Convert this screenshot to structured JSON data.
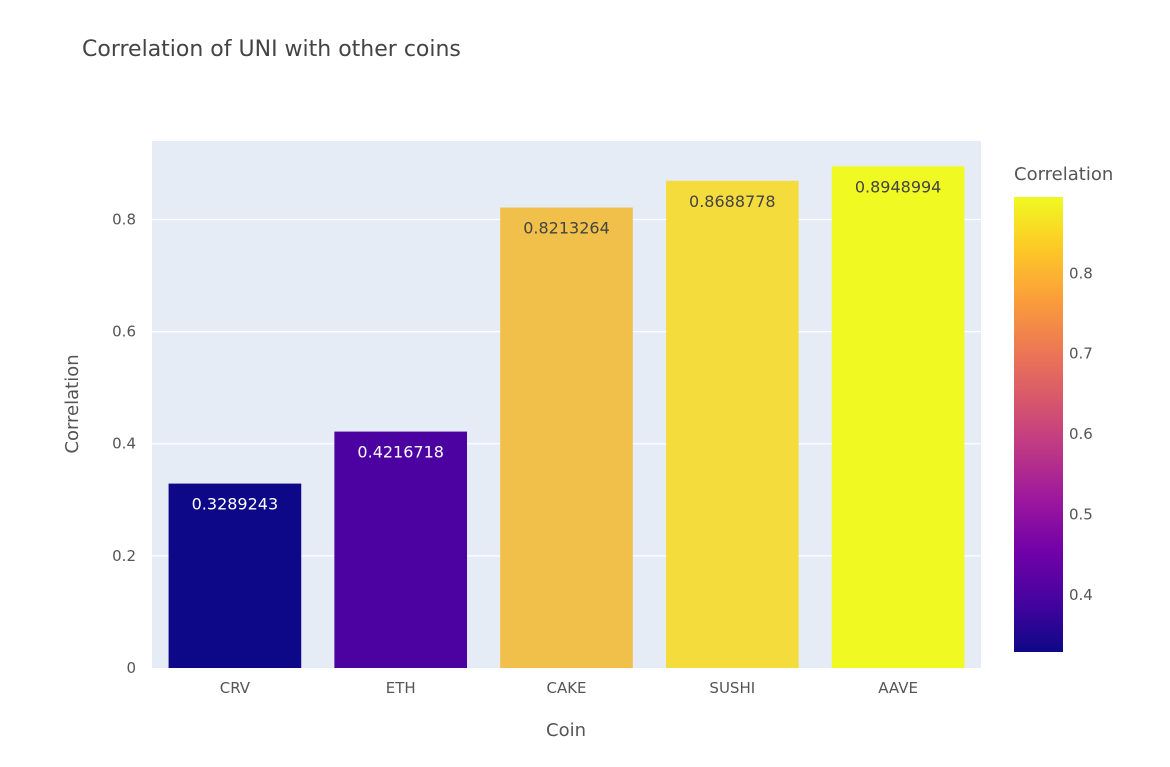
{
  "chart_data": {
    "type": "bar",
    "title": "Correlation of UNI with other coins",
    "xlabel": "Coin",
    "ylabel": "Correlation",
    "categories": [
      "CRV",
      "ETH",
      "CAKE",
      "SUSHI",
      "AAVE"
    ],
    "values": [
      0.3289243,
      0.4216718,
      0.8213264,
      0.8688778,
      0.8948994
    ],
    "data_labels": [
      "0.3289243",
      "0.4216718",
      "0.8213264",
      "0.8688778",
      "0.8948994"
    ],
    "bar_colors": [
      "#0d0887",
      "#4c02a1",
      "#f1c04a",
      "#f4dc3d",
      "#f0f921"
    ],
    "label_colors": [
      "#ffffff",
      "#ffffff",
      "#444444",
      "#444444",
      "#444444"
    ],
    "ylim": [
      0,
      0.94
    ],
    "yticks": [
      0,
      0.2,
      0.4,
      0.6,
      0.8
    ],
    "ytick_labels": [
      "0",
      "0.2",
      "0.4",
      "0.6",
      "0.8"
    ],
    "grid": true,
    "plot_background": "#e5ecf6",
    "colorbar": {
      "title": "Correlation",
      "range": [
        0.3289243,
        0.8948994
      ],
      "ticks": [
        0.4,
        0.5,
        0.6,
        0.7,
        0.8
      ],
      "tick_labels": [
        "0.4",
        "0.5",
        "0.6",
        "0.7",
        "0.8"
      ],
      "colorscale": [
        "#0d0887",
        "#46039f",
        "#7201a8",
        "#9c179e",
        "#bd3786",
        "#d8576b",
        "#ed7953",
        "#fb9f3a",
        "#fdca26",
        "#f0f921"
      ],
      "placement": "right"
    }
  }
}
